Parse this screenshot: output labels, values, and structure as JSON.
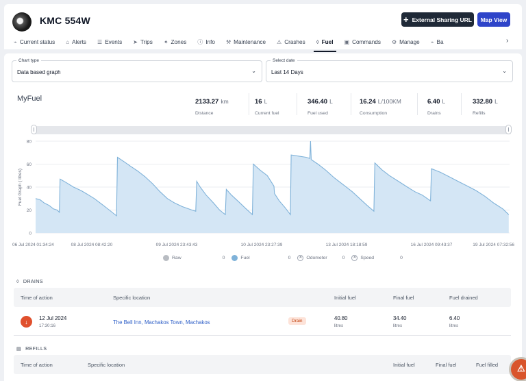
{
  "header": {
    "vehicle_name": "KMC 554W",
    "external_sharing_label": "External Sharing URL",
    "map_view_label": "Map View"
  },
  "nav": {
    "items": [
      {
        "label": "Current status",
        "icon": "signal-icon"
      },
      {
        "label": "Alerts",
        "icon": "bell-icon"
      },
      {
        "label": "Events",
        "icon": "list-icon"
      },
      {
        "label": "Trips",
        "icon": "navigation-icon"
      },
      {
        "label": "Zones",
        "icon": "zones-icon"
      },
      {
        "label": "Info",
        "icon": "info-icon"
      },
      {
        "label": "Maintenance",
        "icon": "wrench-icon"
      },
      {
        "label": "Crashes",
        "icon": "car-crash-icon"
      },
      {
        "label": "Fuel",
        "icon": "droplet-icon",
        "active": true
      },
      {
        "label": "Commands",
        "icon": "terminal-icon"
      },
      {
        "label": "Manage",
        "icon": "gear-icon"
      },
      {
        "label": "Ba",
        "icon": "battery-icon"
      }
    ],
    "more_icon": "chevron-right-icon"
  },
  "filters": {
    "chart_type_label": "Chart type",
    "chart_type_value": "Data based graph",
    "date_label": "Select date",
    "date_value": "Last 14 Days"
  },
  "summary": {
    "title": "MyFuel",
    "stats": [
      {
        "value": "2133.27",
        "unit": "km",
        "label": "Distance"
      },
      {
        "value": "16",
        "unit": "L",
        "label": "Current fuel"
      },
      {
        "value": "346.40",
        "unit": "L",
        "label": "Fuel used"
      },
      {
        "value": "16.24",
        "unit": "L/100KM",
        "label": "Consumption"
      },
      {
        "value": "6.40",
        "unit": "L",
        "label": "Drains"
      },
      {
        "value": "332.80",
        "unit": "L",
        "label": "Refills"
      }
    ]
  },
  "chart_data": {
    "type": "area",
    "ylabel": "Fuel Graph ( litres)",
    "ylim": [
      0,
      80
    ],
    "yticks": [
      0,
      20,
      40,
      60,
      80
    ],
    "xlim": [
      "2024-07-06T01:34:24",
      "2024-07-19T07:32:56"
    ],
    "xticks": [
      "06 Jul 2024 01:34:24",
      "08 Jul 2024 08:42:20",
      "09 Jul 2024 23:43:43",
      "10 Jul 2024 23:27:39",
      "13 Jul 2024 18:18:59",
      "16 Jul 2024 09:43:37",
      "19 Jul 2024 07:32:56"
    ],
    "grid": true,
    "series": [
      {
        "name": "Fuel",
        "color": "#7fb2d9",
        "fill": "#d4e6f5",
        "points": [
          [
            "2024-07-06T01:34",
            30
          ],
          [
            "2024-07-06T04:30",
            29
          ],
          [
            "2024-07-06T07:30",
            26
          ],
          [
            "2024-07-06T10:40",
            24
          ],
          [
            "2024-07-06T13:30",
            21
          ],
          [
            "2024-07-06T16:00",
            20
          ],
          [
            "2024-07-06T17:30",
            18
          ],
          [
            "2024-07-06T18:00",
            47
          ],
          [
            "2024-07-06T22:00",
            44
          ],
          [
            "2024-07-07T03:00",
            40
          ],
          [
            "2024-07-07T08:00",
            37
          ],
          [
            "2024-07-07T12:00",
            34
          ],
          [
            "2024-07-07T17:00",
            30
          ],
          [
            "2024-07-07T22:00",
            25
          ],
          [
            "2024-07-08T03:00",
            20
          ],
          [
            "2024-07-08T07:50",
            15
          ],
          [
            "2024-07-08T08:30",
            66
          ],
          [
            "2024-07-08T13:00",
            62
          ],
          [
            "2024-07-08T17:30",
            58
          ],
          [
            "2024-07-08T22:00",
            54
          ],
          [
            "2024-07-09T03:00",
            49
          ],
          [
            "2024-07-09T08:00",
            43
          ],
          [
            "2024-07-09T13:00",
            36
          ],
          [
            "2024-07-09T18:00",
            30
          ],
          [
            "2024-07-09T23:00",
            26
          ],
          [
            "2024-07-10T04:00",
            23
          ],
          [
            "2024-07-10T10:30",
            20
          ],
          [
            "2024-07-10T13:00",
            19
          ],
          [
            "2024-07-10T13:40",
            45
          ],
          [
            "2024-07-10T16:00",
            40
          ],
          [
            "2024-07-10T20:00",
            33
          ],
          [
            "2024-07-11T01:00",
            26
          ],
          [
            "2024-07-11T05:00",
            20
          ],
          [
            "2024-07-11T08:50",
            16
          ],
          [
            "2024-07-11T09:30",
            38
          ],
          [
            "2024-07-11T13:00",
            33
          ],
          [
            "2024-07-11T18:00",
            27
          ],
          [
            "2024-07-11T22:00",
            22
          ],
          [
            "2024-07-12T03:00",
            16
          ],
          [
            "2024-07-12T03:40",
            60
          ],
          [
            "2024-07-12T08:00",
            55
          ],
          [
            "2024-07-12T13:00",
            50
          ],
          [
            "2024-07-12T17:30",
            40.8
          ],
          [
            "2024-07-12T17:50",
            34.4
          ],
          [
            "2024-07-12T21:00",
            28
          ],
          [
            "2024-07-13T01:00",
            22
          ],
          [
            "2024-07-13T04:30",
            16
          ],
          [
            "2024-07-13T05:00",
            68
          ],
          [
            "2024-07-13T10:00",
            67
          ],
          [
            "2024-07-13T15:00",
            66
          ],
          [
            "2024-07-13T17:30",
            65
          ],
          [
            "2024-07-13T18:00",
            80
          ],
          [
            "2024-07-13T18:30",
            64
          ],
          [
            "2024-07-13T23:00",
            60
          ],
          [
            "2024-07-14T04:00",
            55
          ],
          [
            "2024-07-14T10:00",
            48
          ],
          [
            "2024-07-14T16:00",
            42
          ],
          [
            "2024-07-14T22:00",
            36
          ],
          [
            "2024-07-15T03:00",
            30
          ],
          [
            "2024-07-15T08:00",
            24
          ],
          [
            "2024-07-15T12:30",
            19
          ],
          [
            "2024-07-15T13:10",
            61
          ],
          [
            "2024-07-15T18:00",
            55
          ],
          [
            "2024-07-15T23:00",
            50
          ],
          [
            "2024-07-16T05:00",
            45
          ],
          [
            "2024-07-16T11:00",
            40
          ],
          [
            "2024-07-16T16:00",
            36
          ],
          [
            "2024-07-16T21:00",
            33
          ],
          [
            "2024-07-17T02:30",
            28
          ],
          [
            "2024-07-17T03:10",
            56
          ],
          [
            "2024-07-17T09:00",
            53
          ],
          [
            "2024-07-17T15:00",
            49
          ],
          [
            "2024-07-17T21:00",
            45
          ],
          [
            "2024-07-18T03:00",
            41
          ],
          [
            "2024-07-18T09:00",
            37
          ],
          [
            "2024-07-18T15:00",
            32
          ],
          [
            "2024-07-18T21:00",
            26
          ],
          [
            "2024-07-19T03:00",
            21
          ],
          [
            "2024-07-19T07:00",
            16
          ]
        ]
      }
    ],
    "legend": [
      {
        "name": "Raw",
        "value": "0",
        "color": "#b8bcc2",
        "marker": "dot"
      },
      {
        "name": "Fuel",
        "value": "0",
        "color": "#7fb2d9",
        "marker": "dot"
      },
      {
        "name": "Odometer",
        "value": "0",
        "marker": "x"
      },
      {
        "name": "Speed",
        "value": "0",
        "marker": "x"
      }
    ]
  },
  "drains": {
    "title": "DRAINS",
    "columns": [
      "Time of action",
      "Specific location",
      "Initial fuel",
      "Final fuel",
      "Fuel drained"
    ],
    "rows": [
      {
        "date": "12 Jul 2024",
        "time": "17:30:16",
        "location": "The Bell Inn, Machakos Town, Machakos",
        "badge": "Drain",
        "initial_fuel": "40.80",
        "final_fuel": "34.40",
        "drained": "6.40",
        "unit": "litres"
      }
    ]
  },
  "refills": {
    "title": "REFILLS",
    "columns": [
      "Time of action",
      "Specific location",
      "Initial fuel",
      "Final fuel",
      "Fuel filled"
    ]
  }
}
